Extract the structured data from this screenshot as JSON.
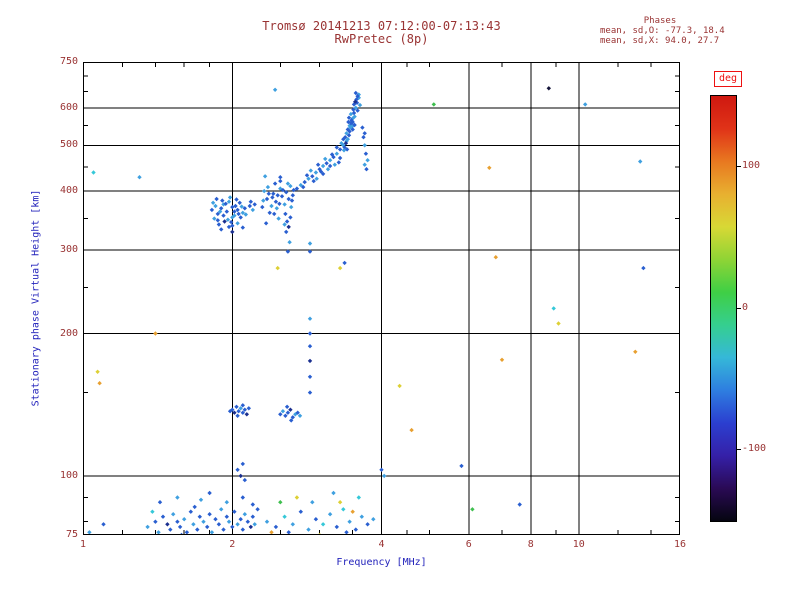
{
  "colors": {
    "background": "#ffffff",
    "title_text": "#993333",
    "tick_text": "#993333",
    "axis_label_text": "#2323bb",
    "deg_label": "#ee1111",
    "grid": "#000000"
  },
  "chart_data": {
    "type": "scatter",
    "title": "Tromsø 20141213 07:12:00-07:13:43",
    "subtitle": "RwPretec (8p)",
    "stats": {
      "header": "Phases",
      "line1": "mean, sd,O: -77.3, 18.4",
      "line2": "mean, sd,X:  94.0, 27.7"
    },
    "xlabel": "Frequency [MHz]",
    "ylabel": "Stationary phase Virtual Height [km]",
    "xscale": "log",
    "yscale": "log",
    "xlim": [
      1,
      16
    ],
    "ylim": [
      75,
      750
    ],
    "x_tick_values": [
      1,
      2,
      4,
      6,
      8,
      10,
      16
    ],
    "x_tick_labels": [
      "1",
      "2",
      "4",
      "6",
      "8",
      "10",
      "16"
    ],
    "x_gridlines": [
      2,
      4,
      6,
      8,
      10
    ],
    "x_minor_ticks": [
      1.2,
      1.4,
      1.6,
      1.8,
      2.5,
      3,
      3.5,
      4.5,
      5,
      7,
      9,
      12,
      14
    ],
    "y_tick_values": [
      75,
      100,
      200,
      300,
      400,
      500,
      600,
      750
    ],
    "y_tick_labels": [
      "75",
      "100",
      "200",
      "300",
      "400",
      "500",
      "600",
      "750"
    ],
    "y_gridlines": [
      100,
      200,
      300,
      400,
      500,
      600
    ],
    "y_minor_ticks": [
      80,
      90,
      150,
      250,
      350,
      450,
      550,
      650,
      700
    ],
    "grid": true,
    "colorbar": {
      "label": "deg",
      "min": -150,
      "max": 150,
      "tick_values": [
        100,
        0,
        -100
      ],
      "tick_labels": [
        "100",
        "0",
        "-100"
      ],
      "gradient_bottom_to_top": [
        "#050510",
        "#2a0a55",
        "#3520a8",
        "#2b3fd0",
        "#2e7ee0",
        "#35b8d8",
        "#35cf8f",
        "#3fcf45",
        "#8fd435",
        "#d8d835",
        "#e8b030",
        "#e87820",
        "#e03318",
        "#cf1810"
      ]
    },
    "palette": [
      "#2a5fd0",
      "#3fa0e0",
      "#35c8d8",
      "#e8a030",
      "#ddd035",
      "#3fbf4f",
      "#d03020",
      "#1a2f8f",
      "#15153a"
    ],
    "points": [
      [
        1.82,
        365,
        0
      ],
      [
        1.85,
        372,
        1
      ],
      [
        1.87,
        358,
        0
      ],
      [
        1.9,
        368,
        0
      ],
      [
        1.92,
        375,
        1
      ],
      [
        1.95,
        362,
        0
      ],
      [
        1.97,
        380,
        1
      ],
      [
        2.0,
        370,
        0
      ],
      [
        2.02,
        355,
        1
      ],
      [
        2.05,
        365,
        0
      ],
      [
        2.07,
        378,
        0
      ],
      [
        2.1,
        360,
        1
      ],
      [
        1.88,
        340,
        0
      ],
      [
        1.93,
        345,
        7
      ],
      [
        2.0,
        338,
        0
      ],
      [
        2.05,
        342,
        1
      ],
      [
        1.86,
        385,
        0
      ],
      [
        1.98,
        388,
        1
      ],
      [
        2.08,
        352,
        0
      ],
      [
        1.84,
        350,
        1
      ],
      [
        1.91,
        382,
        0
      ],
      [
        2.12,
        368,
        0
      ],
      [
        1.96,
        348,
        1
      ],
      [
        2.03,
        372,
        0
      ],
      [
        1.89,
        362,
        1
      ],
      [
        2.06,
        358,
        0
      ],
      [
        1.94,
        376,
        0
      ],
      [
        2.0,
        352,
        1
      ],
      [
        1.9,
        332,
        0
      ],
      [
        2.0,
        328,
        7
      ],
      [
        2.1,
        335,
        0
      ],
      [
        1.83,
        378,
        1
      ],
      [
        2.04,
        384,
        0
      ],
      [
        1.99,
        344,
        0
      ],
      [
        2.09,
        371,
        1
      ],
      [
        1.92,
        355,
        0
      ],
      [
        1.87,
        347,
        0
      ],
      [
        2.13,
        357,
        1
      ],
      [
        1.97,
        336,
        0
      ],
      [
        2.02,
        362,
        0
      ],
      [
        2.17,
        372,
        0
      ],
      [
        2.2,
        365,
        1
      ],
      [
        2.22,
        375,
        0
      ],
      [
        2.18,
        380,
        0
      ],
      [
        2.3,
        370,
        0
      ],
      [
        2.32,
        400,
        1
      ],
      [
        2.35,
        385,
        0
      ],
      [
        2.4,
        372,
        1
      ],
      [
        2.42,
        395,
        0
      ],
      [
        2.45,
        380,
        0
      ],
      [
        2.5,
        405,
        1
      ],
      [
        2.52,
        390,
        0
      ],
      [
        2.55,
        375,
        1
      ],
      [
        2.57,
        398,
        0
      ],
      [
        2.6,
        385,
        0
      ],
      [
        2.62,
        410,
        1
      ],
      [
        2.65,
        392,
        0
      ],
      [
        2.38,
        360,
        0
      ],
      [
        2.48,
        350,
        1
      ],
      [
        2.58,
        345,
        0
      ],
      [
        2.44,
        415,
        0
      ],
      [
        2.36,
        408,
        1
      ],
      [
        2.5,
        420,
        0
      ],
      [
        2.63,
        370,
        1
      ],
      [
        2.41,
        388,
        0
      ],
      [
        2.53,
        402,
        0
      ],
      [
        2.46,
        368,
        1
      ],
      [
        2.34,
        342,
        0
      ],
      [
        2.56,
        358,
        0
      ],
      [
        2.6,
        336,
        7
      ],
      [
        2.33,
        430,
        1
      ],
      [
        2.5,
        428,
        0
      ],
      [
        2.47,
        392,
        0
      ],
      [
        2.59,
        415,
        1
      ],
      [
        2.43,
        358,
        0
      ],
      [
        2.37,
        395,
        0
      ],
      [
        2.55,
        340,
        1
      ],
      [
        2.62,
        352,
        0
      ],
      [
        2.66,
        402,
        0
      ],
      [
        2.31,
        382,
        1
      ],
      [
        2.49,
        376,
        0
      ],
      [
        2.64,
        382,
        0
      ],
      [
        2.57,
        328,
        0
      ],
      [
        2.61,
        312,
        1
      ],
      [
        2.59,
        298,
        0
      ],
      [
        2.7,
        405,
        0
      ],
      [
        2.75,
        412,
        1
      ],
      [
        2.8,
        418,
        0
      ],
      [
        2.85,
        425,
        1
      ],
      [
        2.9,
        430,
        0
      ],
      [
        2.95,
        438,
        1
      ],
      [
        3.0,
        445,
        0
      ],
      [
        3.05,
        452,
        1
      ],
      [
        3.1,
        458,
        0
      ],
      [
        3.15,
        465,
        1
      ],
      [
        3.2,
        472,
        0
      ],
      [
        3.25,
        480,
        1
      ],
      [
        3.3,
        490,
        0
      ],
      [
        3.35,
        500,
        1
      ],
      [
        3.28,
        460,
        0
      ],
      [
        3.12,
        445,
        1
      ],
      [
        2.92,
        420,
        0
      ],
      [
        3.05,
        435,
        0
      ],
      [
        3.22,
        455,
        1
      ],
      [
        3.3,
        470,
        0
      ],
      [
        3.18,
        478,
        0
      ],
      [
        3.08,
        468,
        1
      ],
      [
        2.98,
        455,
        0
      ],
      [
        2.88,
        442,
        1
      ],
      [
        3.35,
        515,
        0
      ],
      [
        3.32,
        505,
        1
      ],
      [
        2.78,
        408,
        0
      ],
      [
        2.83,
        432,
        0
      ],
      [
        2.96,
        425,
        1
      ],
      [
        3.02,
        440,
        0
      ],
      [
        3.25,
        495,
        0
      ],
      [
        3.15,
        452,
        0
      ],
      [
        3.38,
        520,
        0
      ],
      [
        3.4,
        530,
        1
      ],
      [
        3.42,
        540,
        0
      ],
      [
        3.45,
        550,
        1
      ],
      [
        3.43,
        560,
        0
      ],
      [
        3.4,
        510,
        1
      ],
      [
        3.37,
        495,
        0
      ],
      [
        3.44,
        525,
        0
      ],
      [
        3.46,
        545,
        1
      ],
      [
        3.48,
        555,
        0
      ],
      [
        3.5,
        570,
        1
      ],
      [
        3.52,
        585,
        0
      ],
      [
        3.55,
        600,
        1
      ],
      [
        3.57,
        615,
        0
      ],
      [
        3.6,
        630,
        1
      ],
      [
        3.55,
        645,
        0
      ],
      [
        3.5,
        560,
        0
      ],
      [
        3.53,
        575,
        1
      ],
      [
        3.58,
        592,
        0
      ],
      [
        3.62,
        608,
        1
      ],
      [
        3.48,
        565,
        0
      ],
      [
        3.56,
        625,
        0
      ],
      [
        3.6,
        640,
        1
      ],
      [
        3.52,
        610,
        0
      ],
      [
        3.47,
        582,
        1
      ],
      [
        3.41,
        490,
        0
      ],
      [
        3.39,
        505,
        7
      ],
      [
        3.45,
        535,
        0
      ],
      [
        3.49,
        548,
        1
      ],
      [
        3.51,
        595,
        0
      ],
      [
        3.54,
        618,
        7
      ],
      [
        3.44,
        572,
        0
      ],
      [
        3.42,
        515,
        1
      ],
      [
        3.47,
        558,
        0
      ],
      [
        3.58,
        635,
        0
      ],
      [
        3.36,
        488,
        1
      ],
      [
        3.5,
        540,
        0
      ],
      [
        3.53,
        552,
        0
      ],
      [
        3.68,
        520,
        0
      ],
      [
        3.7,
        500,
        1
      ],
      [
        3.72,
        480,
        0
      ],
      [
        3.75,
        465,
        1
      ],
      [
        3.7,
        530,
        0
      ],
      [
        3.66,
        545,
        0
      ],
      [
        3.73,
        445,
        0
      ],
      [
        3.7,
        455,
        1
      ],
      [
        2.0,
        138,
        0
      ],
      [
        2.02,
        136,
        7
      ],
      [
        2.04,
        140,
        0
      ],
      [
        2.06,
        137,
        0
      ],
      [
        2.08,
        139,
        1
      ],
      [
        2.1,
        136,
        0
      ],
      [
        2.12,
        138,
        0
      ],
      [
        2.14,
        135,
        7
      ],
      [
        2.16,
        139,
        0
      ],
      [
        2.05,
        134,
        0
      ],
      [
        2.1,
        141,
        0
      ],
      [
        1.98,
        137,
        0
      ],
      [
        2.5,
        135,
        0
      ],
      [
        2.53,
        137,
        1
      ],
      [
        2.56,
        134,
        0
      ],
      [
        2.59,
        136,
        0
      ],
      [
        2.62,
        138,
        7
      ],
      [
        2.65,
        133,
        0
      ],
      [
        2.68,
        135,
        1
      ],
      [
        2.58,
        140,
        0
      ],
      [
        2.63,
        131,
        0
      ],
      [
        2.71,
        136,
        0
      ],
      [
        2.74,
        134,
        1
      ],
      [
        2.87,
        150,
        0
      ],
      [
        2.87,
        162,
        0
      ],
      [
        2.87,
        175,
        7
      ],
      [
        2.87,
        188,
        0
      ],
      [
        2.87,
        200,
        0
      ],
      [
        2.87,
        215,
        1
      ],
      [
        2.87,
        298,
        0
      ],
      [
        2.87,
        310,
        1
      ],
      [
        1.35,
        78,
        1
      ],
      [
        1.4,
        80,
        0
      ],
      [
        1.42,
        76,
        1
      ],
      [
        1.45,
        82,
        0
      ],
      [
        1.48,
        79,
        7
      ],
      [
        1.5,
        77,
        0
      ],
      [
        1.52,
        83,
        1
      ],
      [
        1.55,
        80,
        0
      ],
      [
        1.57,
        78,
        0
      ],
      [
        1.6,
        81,
        1
      ],
      [
        1.62,
        76,
        0
      ],
      [
        1.65,
        84,
        0
      ],
      [
        1.67,
        79,
        1
      ],
      [
        1.7,
        77,
        0
      ],
      [
        1.72,
        82,
        0
      ],
      [
        1.75,
        80,
        1
      ],
      [
        1.78,
        78,
        0
      ],
      [
        1.8,
        83,
        0
      ],
      [
        1.82,
        76,
        1
      ],
      [
        1.85,
        81,
        0
      ],
      [
        1.88,
        79,
        0
      ],
      [
        1.9,
        85,
        1
      ],
      [
        1.92,
        77,
        0
      ],
      [
        1.95,
        82,
        0
      ],
      [
        1.97,
        80,
        1
      ],
      [
        2.0,
        78,
        0
      ],
      [
        2.02,
        84,
        0
      ],
      [
        2.05,
        79,
        1
      ],
      [
        2.08,
        81,
        0
      ],
      [
        2.1,
        77,
        0
      ],
      [
        2.12,
        83,
        1
      ],
      [
        2.15,
        80,
        0
      ],
      [
        2.18,
        78,
        7
      ],
      [
        2.2,
        82,
        0
      ],
      [
        2.22,
        79,
        1
      ],
      [
        2.25,
        85,
        0
      ],
      [
        1.43,
        88,
        0
      ],
      [
        1.55,
        90,
        1
      ],
      [
        1.68,
        86,
        0
      ],
      [
        1.8,
        92,
        0
      ],
      [
        1.95,
        88,
        1
      ],
      [
        2.1,
        90,
        0
      ],
      [
        2.2,
        87,
        0
      ],
      [
        1.38,
        84,
        2
      ],
      [
        1.58,
        75,
        0
      ],
      [
        1.73,
        89,
        1
      ],
      [
        2.35,
        80,
        1
      ],
      [
        2.45,
        78,
        0
      ],
      [
        2.55,
        82,
        2
      ],
      [
        2.65,
        79,
        1
      ],
      [
        2.75,
        84,
        0
      ],
      [
        2.85,
        77,
        1
      ],
      [
        2.95,
        81,
        0
      ],
      [
        3.05,
        79,
        2
      ],
      [
        3.15,
        83,
        1
      ],
      [
        3.25,
        78,
        0
      ],
      [
        3.35,
        85,
        2
      ],
      [
        3.45,
        80,
        1
      ],
      [
        3.55,
        77,
        0
      ],
      [
        3.65,
        82,
        1
      ],
      [
        3.75,
        79,
        0
      ],
      [
        3.85,
        81,
        1
      ],
      [
        2.4,
        76,
        3
      ],
      [
        3.0,
        75,
        4
      ],
      [
        3.3,
        88,
        4
      ],
      [
        3.5,
        84,
        3
      ],
      [
        2.7,
        90,
        4
      ],
      [
        3.6,
        90,
        2
      ],
      [
        3.2,
        92,
        1
      ],
      [
        3.4,
        76,
        0
      ],
      [
        2.9,
        88,
        1
      ],
      [
        2.6,
        76,
        0
      ],
      [
        2.5,
        88,
        5
      ],
      [
        1.03,
        76,
        1
      ],
      [
        1.1,
        79,
        0
      ],
      [
        2.05,
        103,
        0
      ],
      [
        2.08,
        100,
        7
      ],
      [
        2.1,
        106,
        0
      ],
      [
        2.12,
        98,
        0
      ],
      [
        4.0,
        103,
        0
      ],
      [
        4.05,
        100,
        1
      ],
      [
        5.8,
        105,
        0
      ],
      [
        1.05,
        438,
        2
      ],
      [
        1.3,
        428,
        1
      ],
      [
        1.07,
        166,
        4
      ],
      [
        1.08,
        157,
        3
      ],
      [
        1.4,
        200,
        3
      ],
      [
        2.44,
        655,
        1
      ],
      [
        2.47,
        275,
        4
      ],
      [
        3.3,
        275,
        4
      ],
      [
        3.37,
        282,
        0
      ],
      [
        4.35,
        155,
        4
      ],
      [
        4.6,
        125,
        3
      ],
      [
        5.1,
        610,
        5
      ],
      [
        6.6,
        448,
        3
      ],
      [
        6.8,
        290,
        3
      ],
      [
        7.0,
        176,
        3
      ],
      [
        8.7,
        660,
        8
      ],
      [
        8.9,
        226,
        2
      ],
      [
        9.1,
        210,
        4
      ],
      [
        10.3,
        610,
        1
      ],
      [
        13.0,
        183,
        3
      ],
      [
        13.3,
        462,
        1
      ],
      [
        13.5,
        275,
        0
      ],
      [
        6.1,
        85,
        5
      ],
      [
        7.6,
        87,
        0
      ]
    ]
  }
}
